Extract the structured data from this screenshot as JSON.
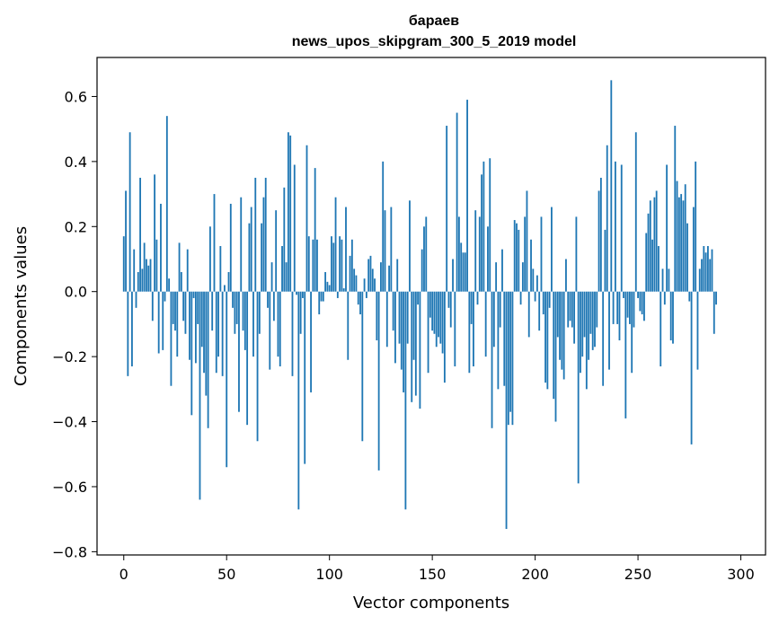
{
  "chart_data": {
    "type": "bar",
    "title_line1": "бараев",
    "title_line2": "news_upos_skipgram_300_5_2019 model",
    "xlabel": "Vector components",
    "ylabel": "Components values",
    "xlim": [
      -13,
      312
    ],
    "ylim": [
      -0.81,
      0.72
    ],
    "xticks": [
      0,
      50,
      100,
      150,
      200,
      250,
      300
    ],
    "yticks": [
      -0.8,
      -0.6,
      -0.4,
      -0.2,
      0.0,
      0.2,
      0.4,
      0.6
    ],
    "ytick_labels": [
      "−0.8",
      "−0.6",
      "−0.4",
      "−0.2",
      "0.0",
      "0.2",
      "0.4",
      "0.6"
    ],
    "bar_color": "#1f77b4",
    "values": [
      0.17,
      0.31,
      -0.26,
      0.49,
      -0.23,
      0.13,
      -0.05,
      0.06,
      0.35,
      0.07,
      0.15,
      0.1,
      0.08,
      0.1,
      -0.09,
      0.36,
      0.16,
      -0.19,
      0.27,
      -0.18,
      -0.03,
      0.54,
      0.04,
      -0.29,
      -0.1,
      -0.12,
      -0.2,
      0.15,
      0.06,
      -0.09,
      -0.13,
      0.13,
      -0.21,
      -0.38,
      -0.02,
      -0.22,
      -0.1,
      -0.64,
      -0.17,
      -0.25,
      -0.32,
      -0.42,
      0.2,
      -0.12,
      0.3,
      -0.25,
      -0.2,
      0.14,
      -0.26,
      0.02,
      -0.54,
      0.06,
      0.27,
      -0.05,
      -0.13,
      -0.1,
      -0.37,
      0.29,
      -0.12,
      -0.18,
      -0.41,
      0.21,
      0.26,
      -0.2,
      0.35,
      -0.46,
      -0.13,
      0.21,
      0.29,
      0.35,
      -0.05,
      -0.24,
      0.09,
      -0.09,
      0.25,
      -0.2,
      -0.23,
      0.14,
      0.32,
      0.09,
      0.49,
      0.48,
      -0.26,
      0.39,
      -0.01,
      -0.67,
      -0.13,
      -0.02,
      -0.53,
      0.45,
      0.17,
      -0.31,
      0.16,
      0.38,
      0.16,
      -0.07,
      -0.03,
      -0.03,
      0.06,
      0.03,
      0.02,
      0.17,
      0.15,
      0.29,
      -0.02,
      0.17,
      0.16,
      0.01,
      0.26,
      -0.21,
      0.11,
      0.16,
      0.07,
      0.05,
      -0.04,
      -0.07,
      -0.46,
      0.04,
      -0.02,
      0.1,
      0.11,
      0.07,
      0.04,
      -0.15,
      -0.55,
      0.09,
      0.4,
      0.25,
      -0.17,
      0.08,
      0.26,
      -0.12,
      -0.22,
      0.1,
      -0.16,
      -0.24,
      -0.31,
      -0.67,
      -0.16,
      0.28,
      -0.34,
      -0.21,
      -0.32,
      -0.04,
      -0.36,
      0.13,
      0.2,
      0.23,
      -0.25,
      -0.08,
      -0.12,
      -0.13,
      -0.17,
      -0.14,
      -0.16,
      -0.19,
      -0.28,
      0.51,
      -0.05,
      -0.11,
      0.1,
      -0.23,
      0.55,
      0.23,
      0.15,
      0.12,
      0.12,
      0.59,
      -0.25,
      -0.1,
      -0.23,
      0.25,
      -0.04,
      0.23,
      0.36,
      0.4,
      -0.2,
      0.2,
      0.41,
      -0.42,
      -0.17,
      0.09,
      -0.3,
      -0.11,
      0.13,
      -0.29,
      -0.73,
      -0.41,
      -0.37,
      -0.41,
      0.22,
      0.21,
      0.19,
      -0.04,
      0.09,
      0.23,
      0.31,
      -0.14,
      0.16,
      0.07,
      -0.03,
      0.05,
      -0.12,
      0.23,
      -0.07,
      -0.28,
      -0.3,
      -0.05,
      0.26,
      -0.33,
      -0.4,
      -0.14,
      -0.21,
      -0.24,
      -0.27,
      0.1,
      -0.11,
      -0.09,
      -0.11,
      -0.16,
      0.23,
      -0.59,
      -0.25,
      -0.2,
      -0.14,
      -0.3,
      -0.21,
      -0.13,
      -0.18,
      -0.17,
      -0.11,
      0.31,
      0.35,
      -0.29,
      0.19,
      0.45,
      -0.24,
      0.65,
      -0.1,
      0.4,
      -0.1,
      -0.15,
      0.39,
      -0.02,
      -0.39,
      -0.08,
      -0.1,
      -0.25,
      -0.11,
      0.49,
      -0.02,
      -0.06,
      -0.07,
      -0.09,
      0.18,
      0.24,
      0.28,
      0.16,
      0.29,
      0.31,
      0.14,
      -0.23,
      0.07,
      -0.04,
      0.39,
      0.07,
      -0.15,
      -0.16,
      0.51,
      0.34,
      0.29,
      0.3,
      0.28,
      0.33,
      0.21,
      -0.03,
      -0.47,
      0.26,
      0.4,
      -0.24,
      0.07,
      0.1,
      0.14,
      0.12,
      0.14,
      0.1,
      0.13,
      -0.13,
      -0.04
    ]
  }
}
